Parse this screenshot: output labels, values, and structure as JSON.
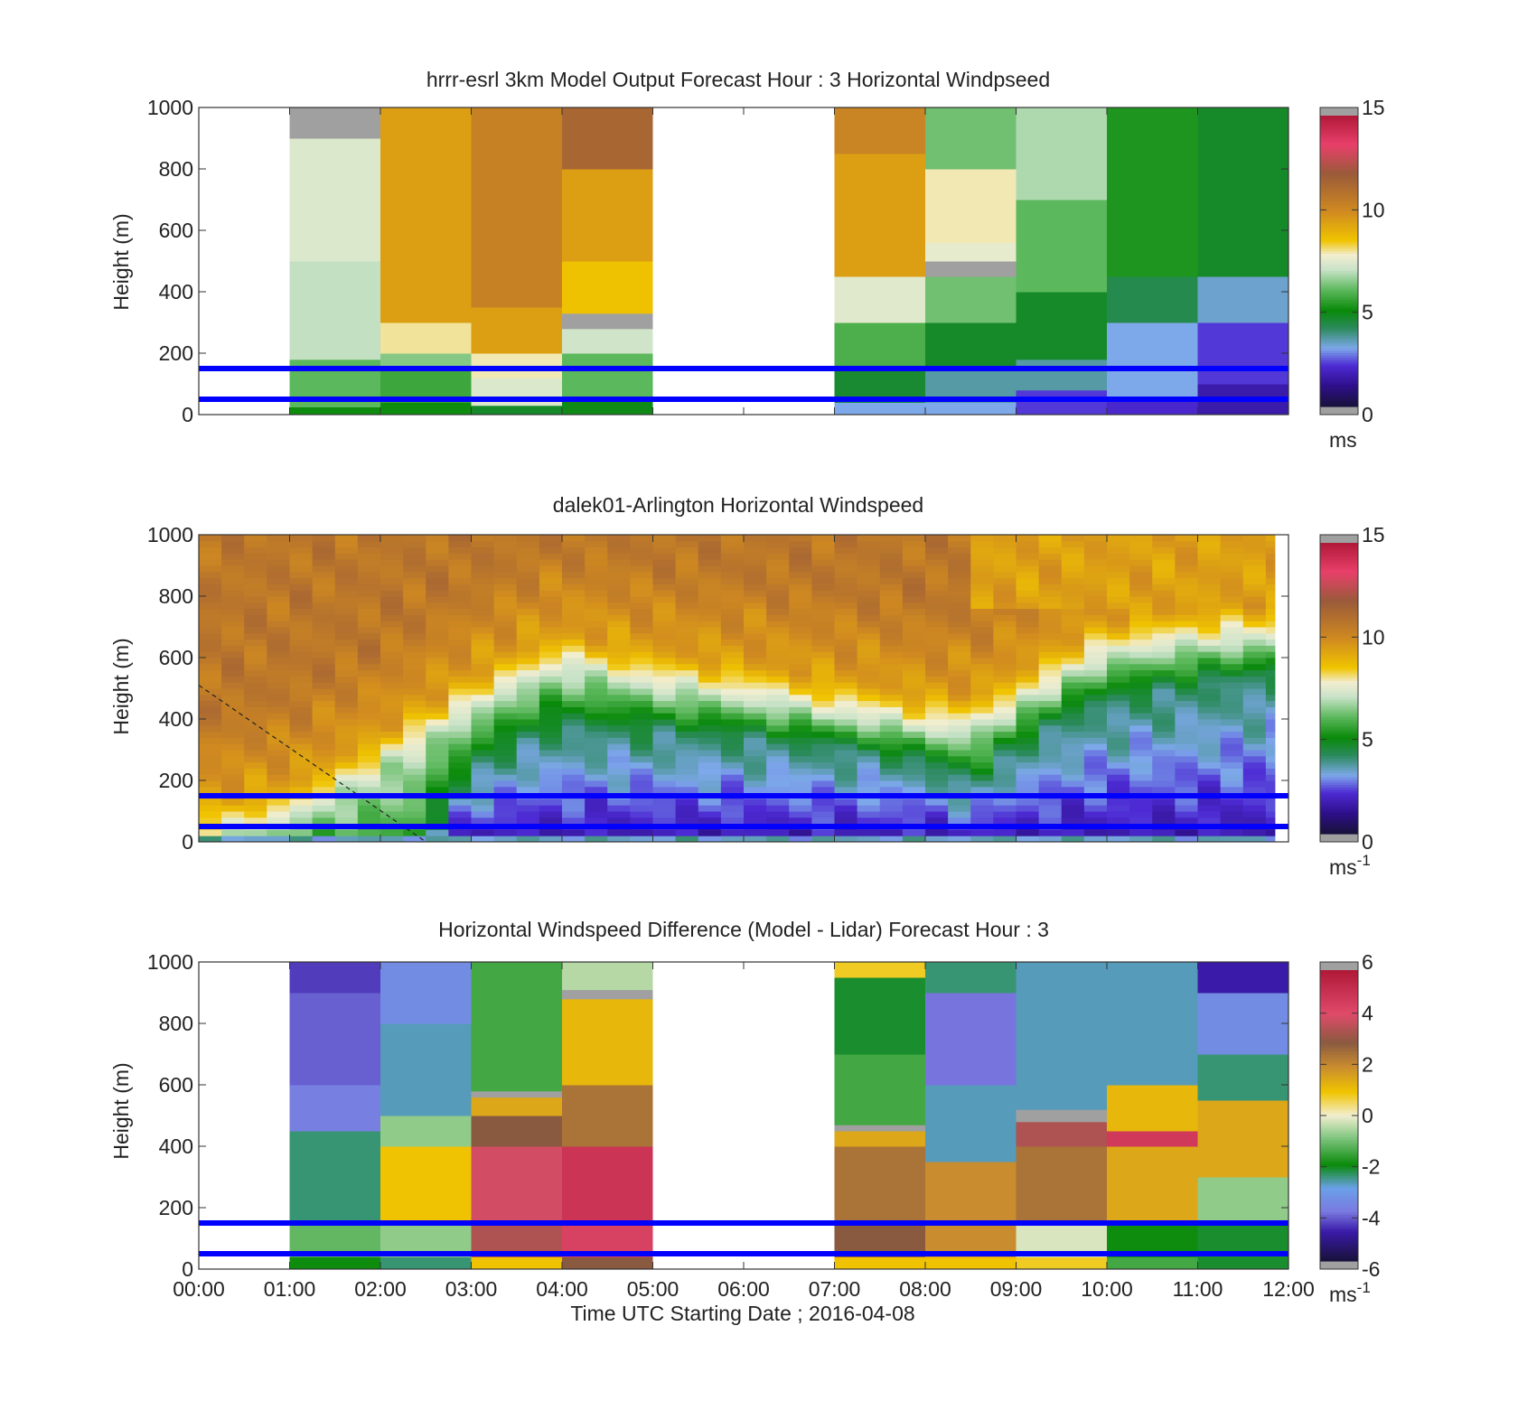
{
  "chart_data": [
    {
      "type": "heatmap",
      "title": "hrrr-esrl 3km Model Output   Forecast Hour : 3 Horizontal Windpseed",
      "ylabel": "Height (m)",
      "ylim": [
        0,
        1000
      ],
      "y_ticks": [
        "0",
        "200",
        "400",
        "600",
        "800",
        "1000"
      ],
      "xlim": [
        0,
        12
      ],
      "cmap": "wind",
      "colorbar": {
        "min": 0,
        "max": 15,
        "ticks": [
          "0",
          "5",
          "10",
          "15"
        ],
        "label": "ms",
        "label_sup": ""
      },
      "reference_lines_m": [
        50,
        150
      ],
      "columns": [
        {
          "t0": 1,
          "t1": 2,
          "levels": [
            [
              0,
              25,
              5.0
            ],
            [
              25,
              180,
              6.0
            ],
            [
              180,
              500,
              7.0
            ],
            [
              500,
              900,
              7.4
            ],
            [
              900,
              1000,
              15.5
            ]
          ]
        },
        {
          "t0": 2,
          "t1": 3,
          "levels": [
            [
              0,
              40,
              5.0
            ],
            [
              40,
              150,
              5.6
            ],
            [
              150,
              200,
              6.4
            ],
            [
              200,
              300,
              8.0
            ],
            [
              300,
              1000,
              9.5
            ]
          ]
        },
        {
          "t0": 3,
          "t1": 4,
          "levels": [
            [
              0,
              30,
              4.6
            ],
            [
              30,
              120,
              7.4
            ],
            [
              120,
              200,
              7.9
            ],
            [
              200,
              350,
              9.5
            ],
            [
              350,
              1000,
              10.4
            ]
          ]
        },
        {
          "t0": 4,
          "t1": 5,
          "levels": [
            [
              0,
              60,
              4.8
            ],
            [
              60,
              200,
              6.0
            ],
            [
              200,
              280,
              7.2
            ],
            [
              280,
              330,
              15.5
            ],
            [
              330,
              500,
              8.6
            ],
            [
              500,
              800,
              9.5
            ],
            [
              800,
              1000,
              11.5
            ]
          ]
        },
        {
          "t0": 7,
          "t1": 8,
          "levels": [
            [
              0,
              40,
              3.0
            ],
            [
              40,
              150,
              4.5
            ],
            [
              150,
              300,
              5.8
            ],
            [
              300,
              450,
              7.5
            ],
            [
              450,
              850,
              9.5
            ],
            [
              850,
              1000,
              10.3
            ]
          ]
        },
        {
          "t0": 8,
          "t1": 9,
          "levels": [
            [
              0,
              40,
              3.0
            ],
            [
              40,
              150,
              3.5
            ],
            [
              150,
              300,
              4.6
            ],
            [
              300,
              450,
              6.2
            ],
            [
              450,
              500,
              15.5
            ],
            [
              500,
              560,
              7.6
            ],
            [
              560,
              800,
              7.9
            ],
            [
              800,
              1000,
              6.2
            ]
          ]
        },
        {
          "t0": 9,
          "t1": 10,
          "levels": [
            [
              0,
              80,
              2.2
            ],
            [
              80,
              180,
              3.5
            ],
            [
              180,
              400,
              4.6
            ],
            [
              400,
              700,
              6.0
            ],
            [
              700,
              1000,
              6.8
            ]
          ]
        },
        {
          "t0": 10,
          "t1": 11,
          "levels": [
            [
              0,
              60,
              2.0
            ],
            [
              60,
              300,
              3.0
            ],
            [
              300,
              450,
              4.2
            ],
            [
              450,
              1000,
              5.2
            ]
          ]
        },
        {
          "t0": 11,
          "t1": 12,
          "levels": [
            [
              0,
              100,
              1.5
            ],
            [
              100,
              300,
              2.2
            ],
            [
              300,
              450,
              3.2
            ],
            [
              450,
              1000,
              4.6
            ]
          ]
        }
      ]
    },
    {
      "type": "heatmap",
      "title": "dalek01-Arlington  Horizontal Windspeed",
      "ylabel": "Height (m)",
      "ylim": [
        0,
        1000
      ],
      "y_ticks": [
        "0",
        "200",
        "400",
        "600",
        "800",
        "1000"
      ],
      "xlim": [
        0,
        12
      ],
      "cmap": "wind",
      "colorbar": {
        "min": 0,
        "max": 15,
        "ticks": [
          "0",
          "5",
          "10",
          "15"
        ],
        "label": "ms",
        "label_sup": "-1"
      },
      "reference_lines_m": [
        50,
        150
      ],
      "data_end_hour": 11.85,
      "jet_layer": {
        "hours": [
          0,
          1,
          2,
          2.5,
          3,
          3.5,
          4,
          5,
          6,
          7,
          8,
          8.5,
          9,
          9.5,
          10,
          11,
          11.8
        ],
        "top_m": [
          0,
          60,
          230,
          330,
          420,
          500,
          560,
          500,
          460,
          410,
          360,
          350,
          430,
          520,
          600,
          640,
          650
        ],
        "core_m": [
          0,
          0,
          0,
          0,
          230,
          320,
          370,
          360,
          340,
          310,
          260,
          180,
          300,
          400,
          460,
          510,
          550
        ]
      },
      "profile": {
        "surface": 5.5,
        "low_level": 1.5,
        "jet_core": 4.0,
        "layer_top": 7.0,
        "aloft_low": 9.5,
        "aloft_high": 10.8,
        "top_cap": 9.5
      },
      "dashed_line": {
        "x": [
          0,
          2.5
        ],
        "y": [
          510,
          0
        ]
      }
    },
    {
      "type": "heatmap",
      "title": "Horizontal Windspeed Difference (Model - Lidar) Forecast Hour : 3",
      "ylabel": "Height (m)",
      "xlabel": "Time UTC  Starting Date ; 2016-04-08",
      "ylim": [
        0,
        1000
      ],
      "y_ticks": [
        "0",
        "200",
        "400",
        "600",
        "800",
        "1000"
      ],
      "xlim": [
        0,
        12
      ],
      "x_ticks": [
        "00:00",
        "01:00",
        "02:00",
        "03:00",
        "04:00",
        "05:00",
        "06:00",
        "07:00",
        "08:00",
        "09:00",
        "10:00",
        "11:00",
        "12:00"
      ],
      "cmap": "diff",
      "colorbar": {
        "min": -6,
        "max": 6,
        "ticks": [
          "-6",
          "-4",
          "-2",
          "0",
          "2",
          "4",
          "6"
        ],
        "label": "ms",
        "label_sup": "-1"
      },
      "reference_lines_m": [
        50,
        150
      ],
      "columns": [
        {
          "t0": 1,
          "t1": 2,
          "levels": [
            [
              0,
              40,
              -2.0
            ],
            [
              40,
              150,
              -1.2
            ],
            [
              150,
              450,
              -2.5
            ],
            [
              450,
              600,
              -3.8
            ],
            [
              600,
              900,
              -4.2
            ],
            [
              900,
              1000,
              -4.5
            ]
          ]
        },
        {
          "t0": 2,
          "t1": 3,
          "levels": [
            [
              0,
              40,
              -2.5
            ],
            [
              40,
              150,
              -0.8
            ],
            [
              150,
              400,
              1.0
            ],
            [
              400,
              500,
              -0.8
            ],
            [
              500,
              800,
              -2.8
            ],
            [
              800,
              1000,
              -3.5
            ]
          ]
        },
        {
          "t0": 3,
          "t1": 4,
          "levels": [
            [
              0,
              40,
              1.0
            ],
            [
              40,
              150,
              3.5
            ],
            [
              150,
              400,
              4.0
            ],
            [
              400,
              500,
              3.0
            ],
            [
              500,
              560,
              1.5
            ],
            [
              560,
              580,
              6.5
            ],
            [
              580,
              1000,
              -1.5
            ]
          ]
        },
        {
          "t0": 4,
          "t1": 5,
          "levels": [
            [
              0,
              40,
              3.0
            ],
            [
              40,
              150,
              4.5
            ],
            [
              150,
              400,
              5.0
            ],
            [
              400,
              600,
              2.5
            ],
            [
              600,
              880,
              1.2
            ],
            [
              880,
              910,
              6.5
            ],
            [
              910,
              1000,
              -0.5
            ]
          ]
        },
        {
          "t0": 7,
          "t1": 8,
          "levels": [
            [
              0,
              40,
              1.0
            ],
            [
              40,
              150,
              3.0
            ],
            [
              150,
              400,
              2.5
            ],
            [
              400,
              450,
              1.5
            ],
            [
              450,
              470,
              6.5
            ],
            [
              470,
              700,
              -1.5
            ],
            [
              700,
              950,
              -2.2
            ],
            [
              950,
              1000,
              0.8
            ]
          ]
        },
        {
          "t0": 8,
          "t1": 9,
          "levels": [
            [
              0,
              40,
              1.0
            ],
            [
              40,
              150,
              2.0
            ],
            [
              150,
              350,
              2.0
            ],
            [
              350,
              600,
              -2.8
            ],
            [
              600,
              900,
              -4.0
            ],
            [
              900,
              1000,
              -2.5
            ]
          ]
        },
        {
          "t0": 9,
          "t1": 10,
          "levels": [
            [
              0,
              40,
              0.8
            ],
            [
              40,
              150,
              -0.2
            ],
            [
              150,
              400,
              2.5
            ],
            [
              400,
              480,
              3.5
            ],
            [
              480,
              520,
              6.5
            ],
            [
              520,
              1000,
              -2.8
            ]
          ]
        },
        {
          "t0": 10,
          "t1": 11,
          "levels": [
            [
              0,
              40,
              -1.5
            ],
            [
              40,
              150,
              -2.0
            ],
            [
              150,
              400,
              1.5
            ],
            [
              400,
              450,
              4.8
            ],
            [
              450,
              600,
              1.2
            ],
            [
              600,
              1000,
              -2.8
            ]
          ]
        },
        {
          "t0": 11,
          "t1": 12,
          "levels": [
            [
              0,
              40,
              -2.2
            ],
            [
              40,
              150,
              -2.2
            ],
            [
              150,
              300,
              -0.8
            ],
            [
              300,
              550,
              1.5
            ],
            [
              550,
              700,
              -2.5
            ],
            [
              700,
              900,
              -3.5
            ],
            [
              900,
              1000,
              -4.8
            ]
          ]
        }
      ]
    }
  ]
}
